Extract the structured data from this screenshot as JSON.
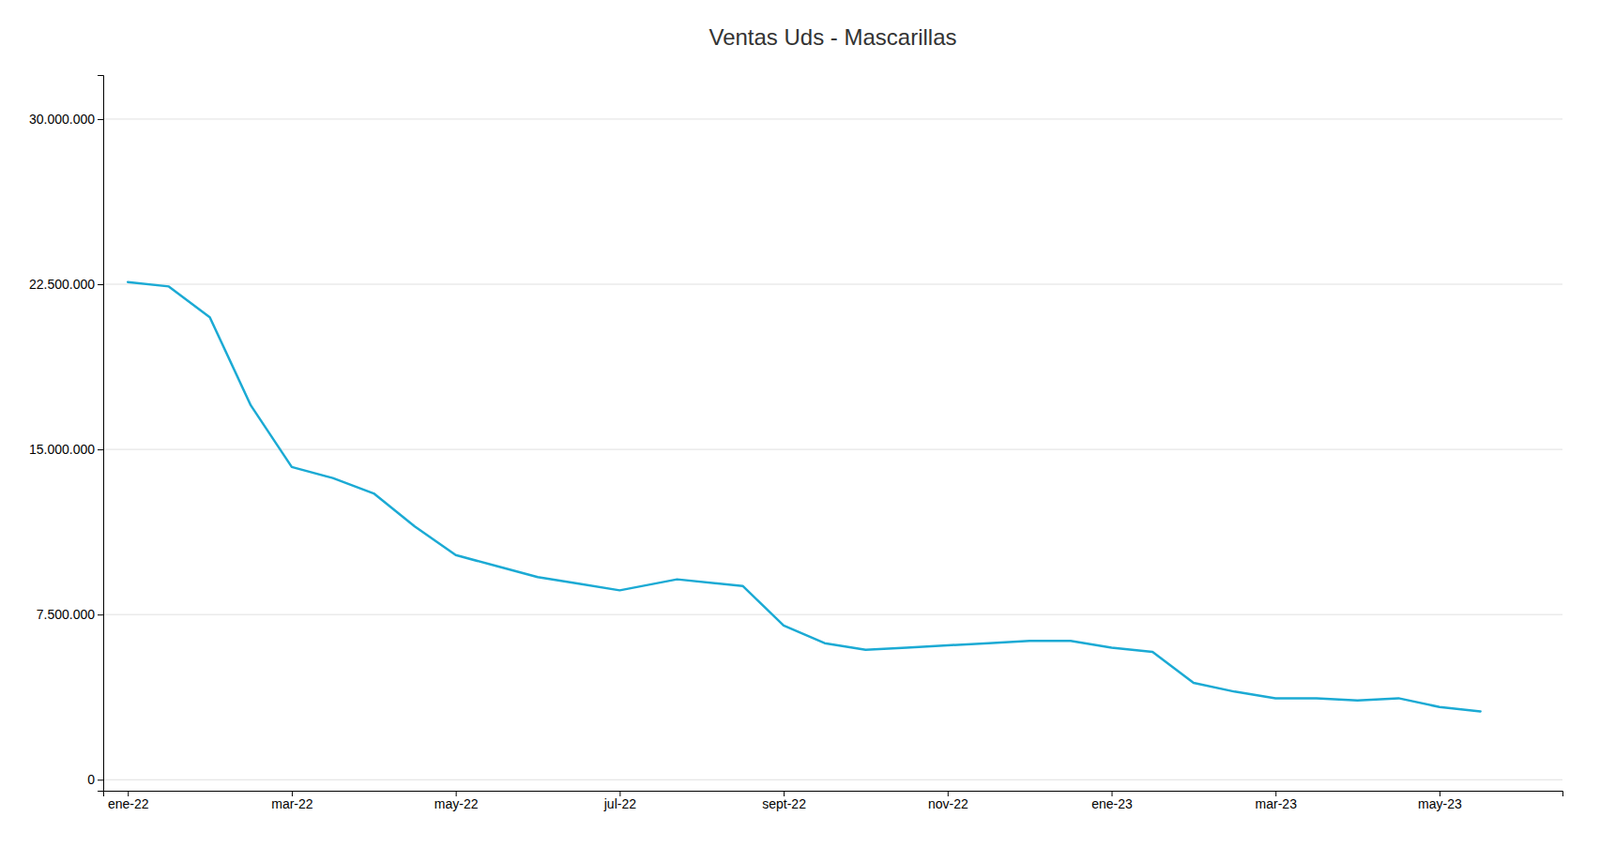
{
  "chart_data": {
    "type": "line",
    "title": "Ventas Uds - Mascarillas",
    "x": [
      0,
      0.5,
      1.0,
      1.5,
      2.0,
      2.5,
      3.0,
      3.5,
      4.0,
      4.5,
      5.0,
      5.5,
      6.0,
      6.7,
      7.5,
      8.0,
      8.5,
      9.0,
      9.5,
      10.0,
      10.5,
      11.0,
      11.5,
      12.0,
      12.5,
      13.0,
      13.5,
      14.0,
      14.5,
      15.0,
      15.5,
      16.0,
      16.5
    ],
    "values": [
      22600000,
      22400000,
      21000000,
      17000000,
      14200000,
      13700000,
      13000000,
      11500000,
      10200000,
      9700000,
      9200000,
      8900000,
      8600000,
      9100000,
      8800000,
      7000000,
      6200000,
      5900000,
      6000000,
      6100000,
      6200000,
      6300000,
      6300000,
      6000000,
      5800000,
      4400000,
      4000000,
      3700000,
      3700000,
      3600000,
      3700000,
      3300000,
      3100000
    ],
    "color": "#1baad4",
    "xlim": [
      -0.3,
      17.5
    ],
    "xticks": [
      {
        "value": 0,
        "label": "ene-22"
      },
      {
        "value": 2,
        "label": "mar-22"
      },
      {
        "value": 4,
        "label": "may-22"
      },
      {
        "value": 6,
        "label": "jul-22"
      },
      {
        "value": 8,
        "label": "sept-22"
      },
      {
        "value": 10,
        "label": "nov-22"
      },
      {
        "value": 12,
        "label": "ene-23"
      },
      {
        "value": 14,
        "label": "mar-23"
      },
      {
        "value": 16,
        "label": "may-23"
      }
    ],
    "ylim": [
      -500000,
      32000000
    ],
    "yticks": [
      0,
      {
        "value": 7500000,
        "label": "7.500.000"
      },
      {
        "value": 15000000,
        "label": "15.000.000"
      },
      {
        "value": 22500000,
        "label": "22.500.000"
      },
      {
        "value": 30000000,
        "label": "30.000.000"
      }
    ],
    "grid": true
  }
}
